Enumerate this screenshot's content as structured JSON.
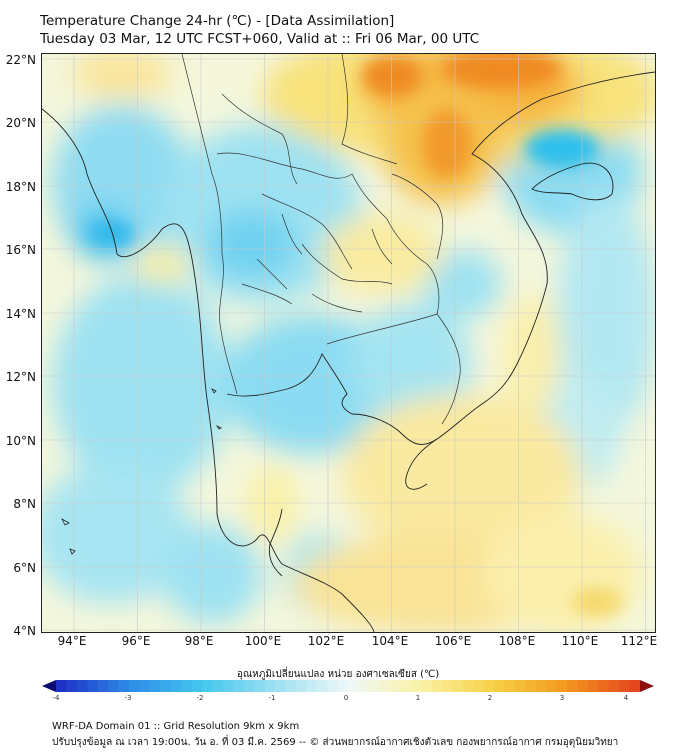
{
  "title_line1": "Temperature Change 24-hr (℃) - [Data Assimilation]",
  "title_line2": "Tuesday 03 Mar, 12 UTC FCST+060, Valid at :: Fri 06 Mar, 00 UTC",
  "lat_labels": [
    "22°N",
    "20°N",
    "18°N",
    "16°N",
    "14°N",
    "12°N",
    "10°N",
    "8°N",
    "6°N",
    "4°N"
  ],
  "lon_labels": [
    "94°E",
    "96°E",
    "98°E",
    "100°E",
    "102°E",
    "104°E",
    "106°E",
    "108°E",
    "110°E",
    "112°E"
  ],
  "colorbar": {
    "title": "อุณหภูมิเปลี่ยนแปลง หน่วย องศาเซลเซียส (℃)",
    "labels": [
      "-4",
      "-3",
      "-2",
      "-1",
      "0",
      "1",
      "2",
      "3",
      "4"
    ],
    "colors": [
      "#0a0a6e",
      "#1e32c8",
      "#2f8fe8",
      "#46c8ee",
      "#9fe1f2",
      "#eef8f8",
      "#faf2a6",
      "#f7d24a",
      "#f39b20",
      "#e4461e",
      "#8a0c0c"
    ]
  },
  "footer_line1": "WRF-DA Domain 01 :: Grid Resolution 9km x 9km",
  "footer_line2": "ปรับปรุงข้อมูล ณ เวลา 19:00น. วัน อ. ที่ 03 มี.ค. 2569 -- © ส่วนพยากรณ์อากาศเชิงตัวเลข กองพยากรณ์อากาศ กรมอุตุนิยมวิทยา"
}
